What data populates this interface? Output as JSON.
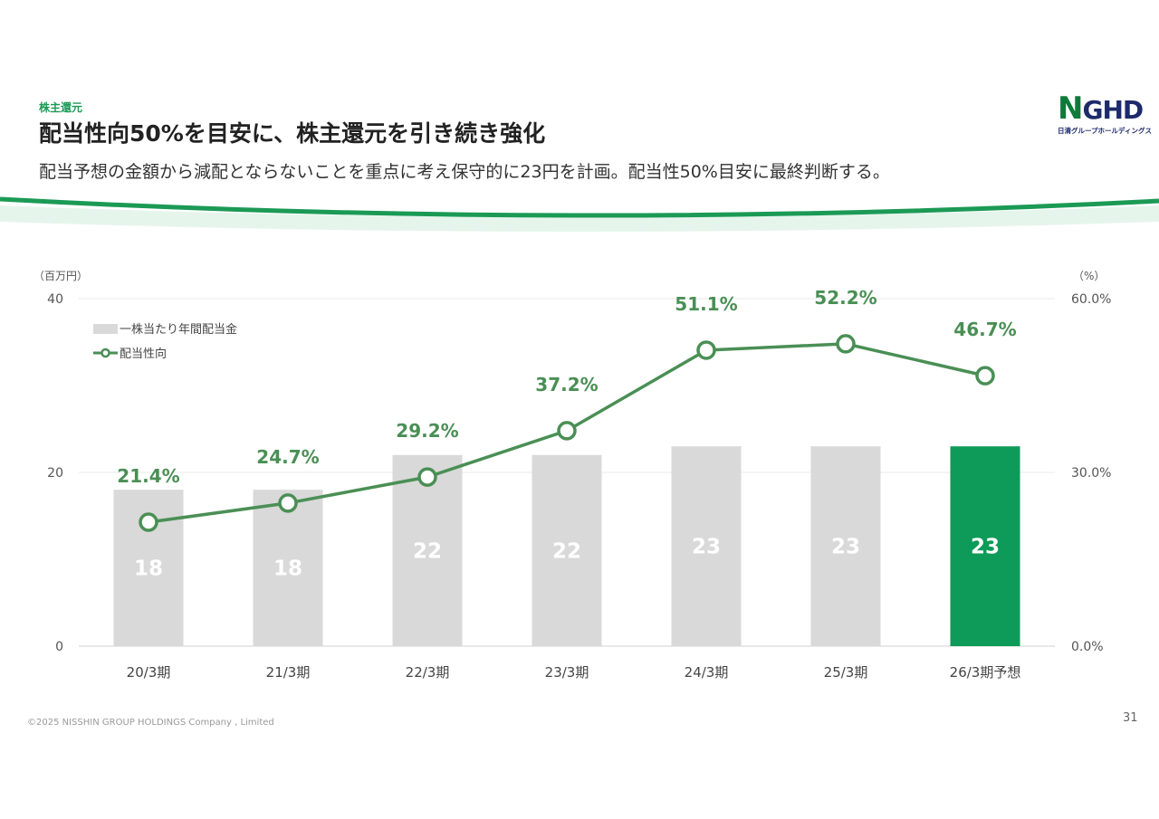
{
  "header": {
    "section_label": "株主還元",
    "title": "配当性向50%を目安に、株主還元を引き続き強化",
    "subtitle": "配当予想の金額から減配とならないことを重点に考え保守的に23円を計画。配当性50%目安に最終判断する。"
  },
  "logo": {
    "mark_n": "N",
    "mark_rest": "GHD",
    "text": "日清グループホールディングス"
  },
  "footer": {
    "copyright": "©2025 NISSHIN GROUP HOLDINGS Company , Limited",
    "page": "31"
  },
  "colors": {
    "accent": "#0e9a58",
    "line": "#4a8f55",
    "bar": "#d9d9d9",
    "highlight_bar": "#0e9a58"
  },
  "chart_data": {
    "type": "bar",
    "left_unit": "（百万円）",
    "right_unit": "（%）",
    "categories": [
      "20/3期",
      "21/3期",
      "22/3期",
      "23/3期",
      "24/3期",
      "25/3期",
      "26/3期予想"
    ],
    "left_ticks": [
      "0",
      "20",
      "40"
    ],
    "right_ticks": [
      "0.0%",
      "30.0%",
      "60.0%"
    ],
    "ylim_left": [
      0,
      40
    ],
    "ylim_right": [
      0,
      60
    ],
    "grid": true,
    "legend_position": "top-left",
    "series": [
      {
        "name": "一株当たり年間配当金",
        "type": "bar",
        "axis": "left",
        "values": [
          18,
          18,
          22,
          22,
          23,
          23,
          23
        ],
        "labels": [
          "18",
          "18",
          "22",
          "22",
          "23",
          "23",
          "23"
        ],
        "highlight_index": 6
      },
      {
        "name": "配当性向",
        "type": "line",
        "axis": "right",
        "values": [
          21.4,
          24.7,
          29.2,
          37.2,
          51.1,
          52.2,
          46.7
        ],
        "labels": [
          "21.4%",
          "24.7%",
          "29.2%",
          "37.2%",
          "51.1%",
          "52.2%",
          "46.7%"
        ]
      }
    ]
  }
}
